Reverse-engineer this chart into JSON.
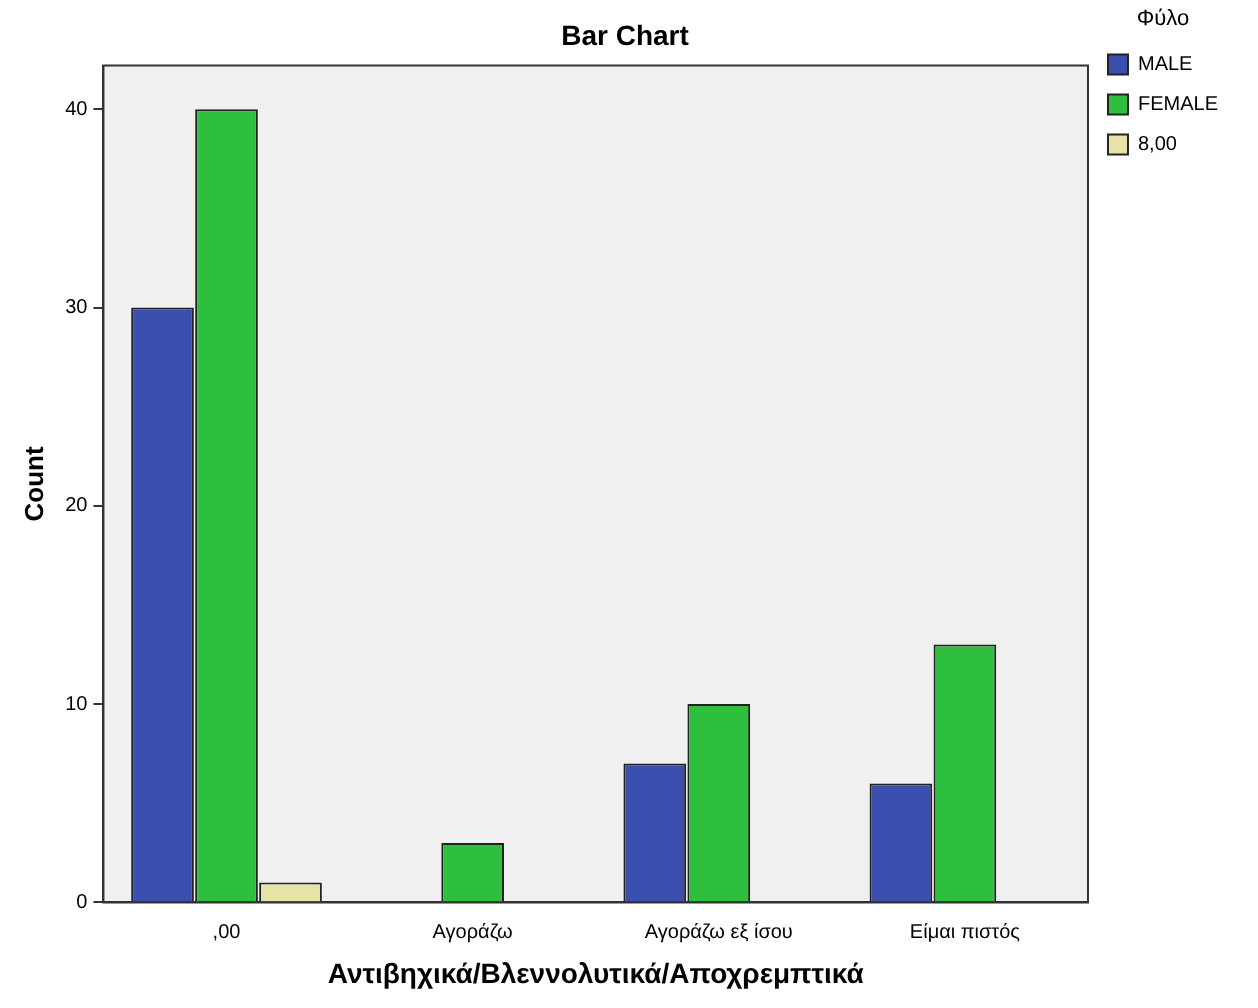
{
  "chart_data": {
    "type": "bar",
    "title": "Bar Chart",
    "xlabel": "Αντιβηχικά/Βλεννολυτικά/Αποχρεμπτικά",
    "ylabel": "Count",
    "legend_title": "Φύλο",
    "categories": [
      ",00",
      "Αγοράζω",
      "Αγοράζω εξ ίσου",
      "Είμαι πιστός"
    ],
    "series": [
      {
        "name": "MALE",
        "color": "#3a4fae",
        "values": [
          30,
          null,
          7,
          6
        ]
      },
      {
        "name": "FEMALE",
        "color": "#2fbf3f",
        "values": [
          40,
          3,
          10,
          13
        ]
      },
      {
        "name": "8,00",
        "color": "#e6e2a8",
        "values": [
          1,
          null,
          null,
          null
        ]
      }
    ],
    "ylim": [
      0,
      42.2
    ],
    "yticks": [
      0,
      10,
      20,
      30,
      40
    ],
    "grid": false,
    "legend": "top right"
  }
}
